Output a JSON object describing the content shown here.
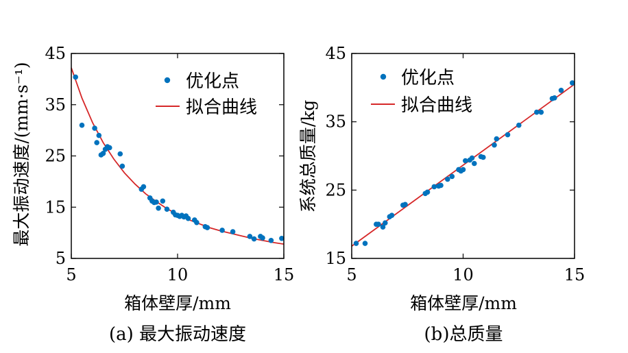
{
  "colors": {
    "points": "#0072BD",
    "fit": "#D62728",
    "axis": "#000000"
  },
  "chart_data": [
    {
      "type": "scatter",
      "panel": "a",
      "caption": "(a) 最大振动速度",
      "xlabel": "箱体壁厚/mm",
      "ylabel": "最大振动速度/(mm·s⁻¹)",
      "xlim": [
        5,
        15
      ],
      "ylim": [
        5,
        45
      ],
      "xticks": [
        5,
        10,
        15
      ],
      "yticks": [
        5,
        15,
        25,
        35,
        45
      ],
      "legend": {
        "entries": [
          "优化点",
          "拟合曲线"
        ],
        "position": "top-right"
      },
      "series": [
        {
          "name": "优化点",
          "kind": "scatter",
          "x": [
            5.2,
            5.5,
            6.1,
            6.2,
            6.3,
            6.4,
            6.5,
            6.6,
            6.7,
            6.8,
            7.3,
            7.4,
            8.3,
            8.4,
            8.7,
            8.8,
            8.9,
            9.0,
            9.1,
            9.3,
            9.5,
            9.8,
            9.9,
            10.0,
            10.1,
            10.2,
            10.3,
            10.4,
            10.5,
            10.8,
            10.9,
            11.3,
            11.4,
            12.1,
            12.6,
            13.4,
            13.6,
            13.9,
            14.0,
            14.4,
            14.9
          ],
          "y": [
            40.4,
            31.0,
            30.4,
            27.6,
            29.0,
            25.2,
            25.5,
            26.3,
            26.8,
            26.6,
            25.4,
            23.0,
            18.5,
            19.0,
            16.8,
            16.2,
            15.9,
            16.0,
            14.8,
            16.2,
            14.6,
            14.0,
            13.5,
            13.4,
            13.2,
            13.4,
            13.1,
            13.3,
            12.8,
            12.5,
            12.0,
            11.2,
            11.0,
            10.5,
            10.2,
            9.3,
            8.8,
            9.3,
            9.0,
            8.5,
            8.9
          ]
        },
        {
          "name": "拟合曲线",
          "kind": "line",
          "x": [
            5.0,
            5.5,
            6.0,
            6.5,
            7.0,
            7.5,
            8.0,
            8.5,
            9.0,
            9.5,
            10.0,
            10.5,
            11.0,
            11.5,
            12.0,
            12.5,
            13.0,
            13.5,
            14.0,
            14.5,
            15.0
          ],
          "y": [
            42.2,
            36.3,
            31.5,
            27.6,
            24.4,
            21.7,
            19.5,
            17.6,
            16.1,
            14.7,
            13.6,
            12.6,
            11.8,
            11.0,
            10.4,
            9.9,
            9.4,
            8.9,
            8.5,
            8.1,
            7.8
          ]
        }
      ]
    },
    {
      "type": "scatter",
      "panel": "b",
      "caption": "(b)总质量",
      "xlabel": "箱体壁厚/mm",
      "ylabel": "系统总质量/kg",
      "xlim": [
        5,
        15
      ],
      "ylim": [
        15,
        45
      ],
      "xticks": [
        5,
        10,
        15
      ],
      "yticks": [
        15,
        25,
        35,
        45
      ],
      "legend": {
        "entries": [
          "优化点",
          "拟合曲线"
        ],
        "position": "top-left"
      },
      "series": [
        {
          "name": "优化点",
          "kind": "scatter",
          "x": [
            5.2,
            5.6,
            6.1,
            6.2,
            6.4,
            6.5,
            6.7,
            6.8,
            7.3,
            7.4,
            8.3,
            8.4,
            8.7,
            8.9,
            9.0,
            9.3,
            9.5,
            9.8,
            9.9,
            10.0,
            10.1,
            10.3,
            10.4,
            10.5,
            10.8,
            10.9,
            11.4,
            11.5,
            12.0,
            12.5,
            13.3,
            13.5,
            14.0,
            14.1,
            14.4,
            14.9
          ],
          "y": [
            17.2,
            17.2,
            20.0,
            20.0,
            19.6,
            20.2,
            21.1,
            21.3,
            22.8,
            22.9,
            24.5,
            24.7,
            25.5,
            25.6,
            25.7,
            26.6,
            27.0,
            28.0,
            27.8,
            28.0,
            29.3,
            29.4,
            29.7,
            28.9,
            29.9,
            29.8,
            31.6,
            32.5,
            33.1,
            34.5,
            36.4,
            36.4,
            38.4,
            38.5,
            39.6,
            40.7
          ]
        },
        {
          "name": "拟合曲线",
          "kind": "line",
          "x": [
            5.0,
            15.0
          ],
          "y": [
            16.8,
            40.5
          ]
        }
      ]
    }
  ]
}
